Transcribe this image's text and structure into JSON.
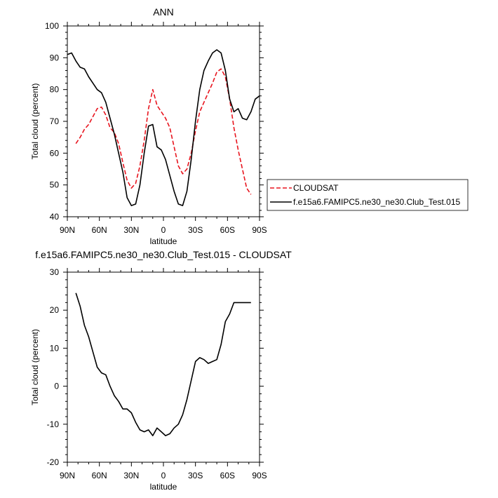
{
  "colors": {
    "cloudsat": "#e8141e",
    "model": "#000000",
    "axis": "#000000"
  },
  "chart_data": [
    {
      "type": "line",
      "title": "ANN",
      "xlabel": "latitude",
      "ylabel": "Total cloud (percent)",
      "xlim": [
        90,
        -90
      ],
      "ylim": [
        40,
        100
      ],
      "xticks": [
        90,
        60,
        30,
        0,
        -30,
        -60,
        -90
      ],
      "xtick_labels": [
        "90N",
        "60N",
        "30N",
        "0",
        "30S",
        "60S",
        "90S"
      ],
      "yticks": [
        40,
        50,
        60,
        70,
        80,
        90,
        100
      ],
      "ytick_labels": [
        "40",
        "50",
        "60",
        "70",
        "80",
        "90",
        "100"
      ],
      "legend_position": "right",
      "series": [
        {
          "name": "CLOUDSAT",
          "style": "dashed",
          "x": [
            82,
            78,
            74,
            70,
            66,
            62,
            58,
            54,
            50,
            46,
            42,
            38,
            34,
            30,
            26,
            22,
            18,
            14,
            10,
            6,
            2,
            -2,
            -6,
            -10,
            -14,
            -18,
            -22,
            -26,
            -30,
            -34,
            -38,
            -42,
            -46,
            -50,
            -54,
            -58,
            -62,
            -66,
            -70,
            -74,
            -78,
            -82
          ],
          "y": [
            63,
            65,
            67.5,
            69,
            71.5,
            74,
            74.5,
            72,
            68,
            66.5,
            63,
            57,
            51.5,
            49,
            50.5,
            56,
            64,
            74,
            80,
            75,
            73,
            71,
            68,
            62,
            56,
            53.5,
            55,
            60,
            67,
            73,
            76,
            79,
            82,
            85.5,
            86.5,
            84,
            77,
            68,
            61,
            55,
            49,
            47
          ]
        },
        {
          "name": "f.e15a6.FAMIPC5.ne30_ne30.Club_Test.015",
          "style": "solid",
          "x": [
            90,
            86,
            82,
            78,
            74,
            70,
            66,
            62,
            58,
            54,
            50,
            46,
            42,
            38,
            34,
            30,
            26,
            22,
            18,
            14,
            10,
            6,
            2,
            -2,
            -6,
            -10,
            -14,
            -18,
            -22,
            -26,
            -30,
            -34,
            -38,
            -42,
            -46,
            -50,
            -54,
            -58,
            -62,
            -66,
            -70,
            -74,
            -78,
            -82,
            -86,
            -90
          ],
          "y": [
            91,
            91.5,
            89,
            87,
            86.5,
            84,
            82,
            80,
            79,
            76,
            71,
            66,
            60,
            54,
            46,
            43.5,
            44,
            50,
            60,
            68.5,
            69,
            62,
            61,
            58,
            53,
            48,
            44,
            43.5,
            48,
            58,
            70,
            80,
            86,
            89,
            91.5,
            92.5,
            91.5,
            86,
            77,
            73,
            74,
            71,
            70.5,
            73,
            77,
            78
          ]
        }
      ]
    },
    {
      "type": "line",
      "title": "f.e15a6.FAMIPC5.ne30_ne30.Club_Test.015 - CLOUDSAT",
      "xlabel": "latitude",
      "ylabel": "Total cloud (percent)",
      "xlim": [
        90,
        -90
      ],
      "ylim": [
        -20,
        30
      ],
      "xticks": [
        90,
        60,
        30,
        0,
        -30,
        -60,
        -90
      ],
      "xtick_labels": [
        "90N",
        "60N",
        "30N",
        "0",
        "30S",
        "60S",
        "90S"
      ],
      "yticks": [
        -20,
        -10,
        0,
        10,
        20,
        30
      ],
      "ytick_labels": [
        "-20",
        "-10",
        "0",
        "10",
        "20",
        "30"
      ],
      "series": [
        {
          "name": "",
          "style": "solid",
          "x": [
            82,
            78,
            74,
            70,
            66,
            62,
            58,
            54,
            50,
            46,
            42,
            38,
            34,
            30,
            26,
            22,
            18,
            14,
            10,
            6,
            2,
            -2,
            -6,
            -10,
            -14,
            -18,
            -22,
            -26,
            -30,
            -34,
            -38,
            -42,
            -46,
            -50,
            -54,
            -58,
            -62,
            -66,
            -70,
            -74,
            -78,
            -82
          ],
          "y": [
            24.5,
            21,
            16,
            13,
            9,
            5,
            3.5,
            3,
            0,
            -2.5,
            -4,
            -6,
            -6,
            -7,
            -9.5,
            -11.5,
            -12,
            -11.5,
            -13,
            -11,
            -12,
            -13,
            -12.5,
            -11,
            -10,
            -7.5,
            -3.5,
            1.5,
            6.5,
            7.5,
            7,
            6,
            6.5,
            7,
            11,
            17,
            19,
            22,
            22,
            22,
            22,
            22
          ]
        }
      ]
    }
  ]
}
